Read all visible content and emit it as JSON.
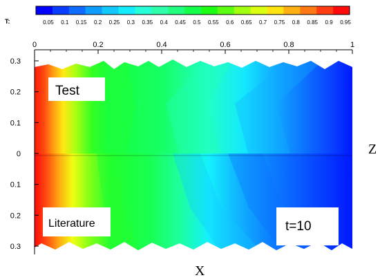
{
  "chart_data": {
    "type": "heatmap",
    "colorbar": {
      "label": "T:",
      "ticks": [
        "0.05",
        "0.1",
        "0.15",
        "0.2",
        "0.25",
        "0.3",
        "0.35",
        "0.4",
        "0.45",
        "0.5",
        "0.55",
        "0.6",
        "0.65",
        "0.7",
        "0.75",
        "0.8",
        "0.85",
        "0.9",
        "0.95"
      ],
      "colors": [
        "#0000ff",
        "#0a3cff",
        "#0d6cff",
        "#0e9cff",
        "#11c8ff",
        "#14ecff",
        "#26ffd8",
        "#2effaa",
        "#20ff80",
        "#14ff4c",
        "#1cff14",
        "#5cff12",
        "#a2ff10",
        "#daff10",
        "#ffe410",
        "#ffb012",
        "#ff7812",
        "#ff3c12",
        "#ff0a0a"
      ]
    },
    "xlabel": "X",
    "ylabel": "Z",
    "x_ticks": [
      "0",
      "0.2",
      "0.4",
      "0.6",
      "0.8",
      "1"
    ],
    "x_tick_values": [
      0,
      0.2,
      0.4,
      0.6,
      0.8,
      1
    ],
    "y_ticks": [
      "0.3",
      "0.2",
      "0.1",
      "0",
      "0.1",
      "0.2",
      "0.3"
    ],
    "y_tick_values": [
      0.3,
      0.2,
      0.1,
      0,
      -0.1,
      -0.2,
      -0.3
    ],
    "xlim": [
      0,
      1
    ],
    "ylim": [
      -0.3,
      0.3
    ],
    "annotations": {
      "top": "Test",
      "bottom": "Literature",
      "time": "t=10"
    }
  }
}
